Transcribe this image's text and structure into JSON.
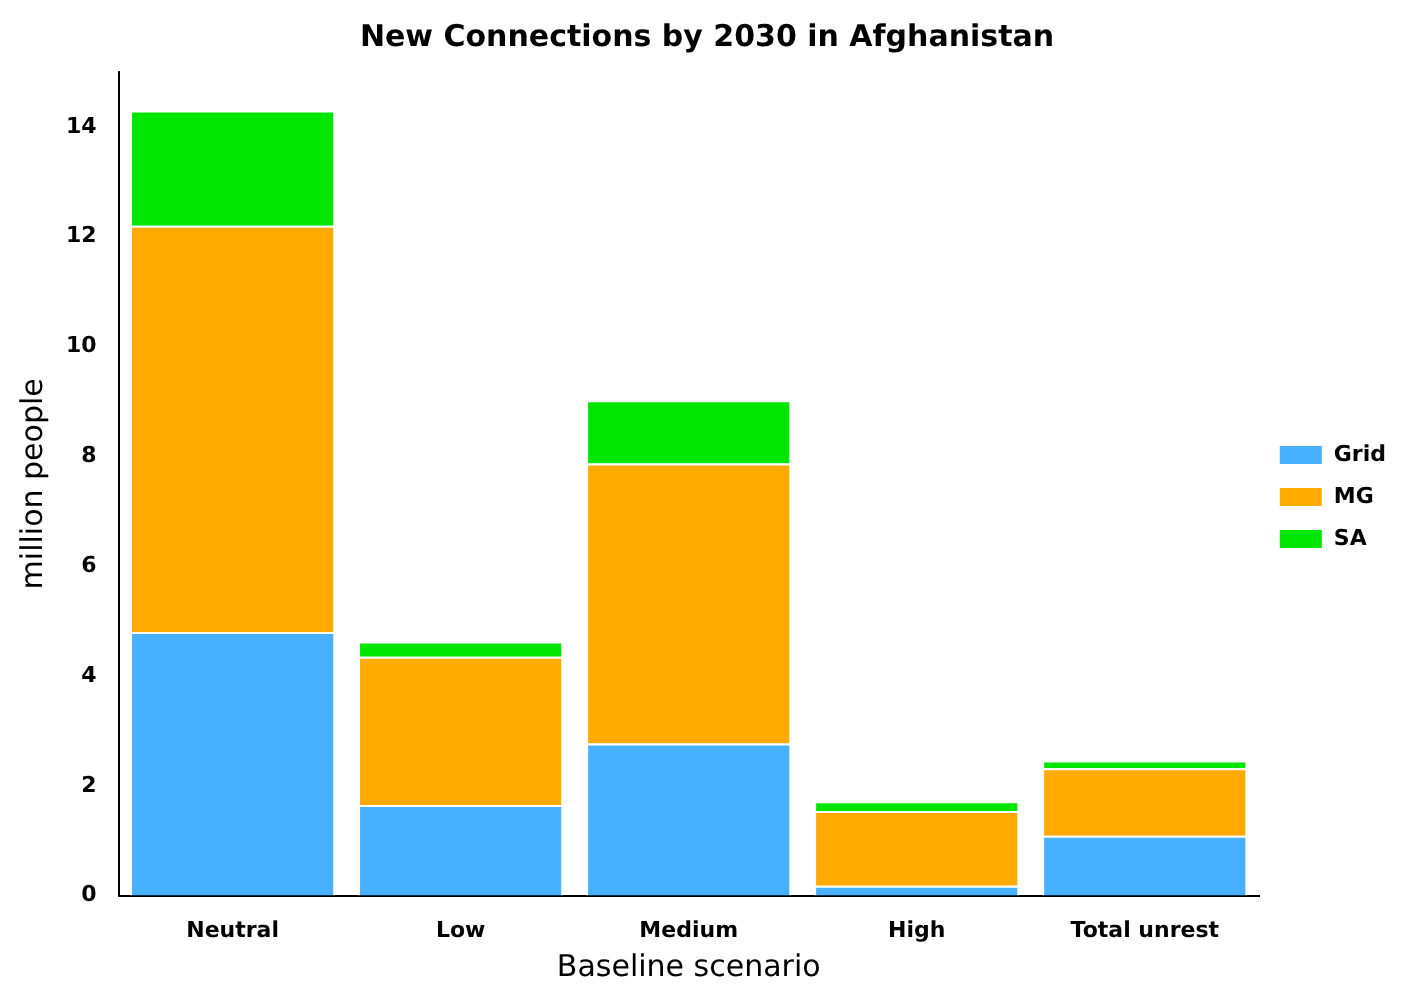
{
  "chart_data": {
    "type": "bar",
    "title": "New Connections by 2030 in Afghanistan",
    "xlabel": "Baseline scenario",
    "ylabel": "million people",
    "categories": [
      "Neutral",
      "Low",
      "Medium",
      "High",
      "Total unrest"
    ],
    "stacked": true,
    "ylim": [
      0,
      15
    ],
    "yticks": [
      0,
      2,
      4,
      6,
      8,
      10,
      12,
      14
    ],
    "grid": false,
    "legend": "right",
    "series": [
      {
        "name": "Grid",
        "color": "#47b0ff",
        "values": [
          4.8,
          1.65,
          2.77,
          0.18,
          1.09
        ]
      },
      {
        "name": "MG",
        "color": "#ffaa00",
        "values": [
          7.4,
          2.7,
          5.1,
          1.36,
          1.23
        ]
      },
      {
        "name": "SA",
        "color": "#00e600",
        "values": [
          2.1,
          0.28,
          1.15,
          0.18,
          0.14
        ]
      }
    ]
  }
}
